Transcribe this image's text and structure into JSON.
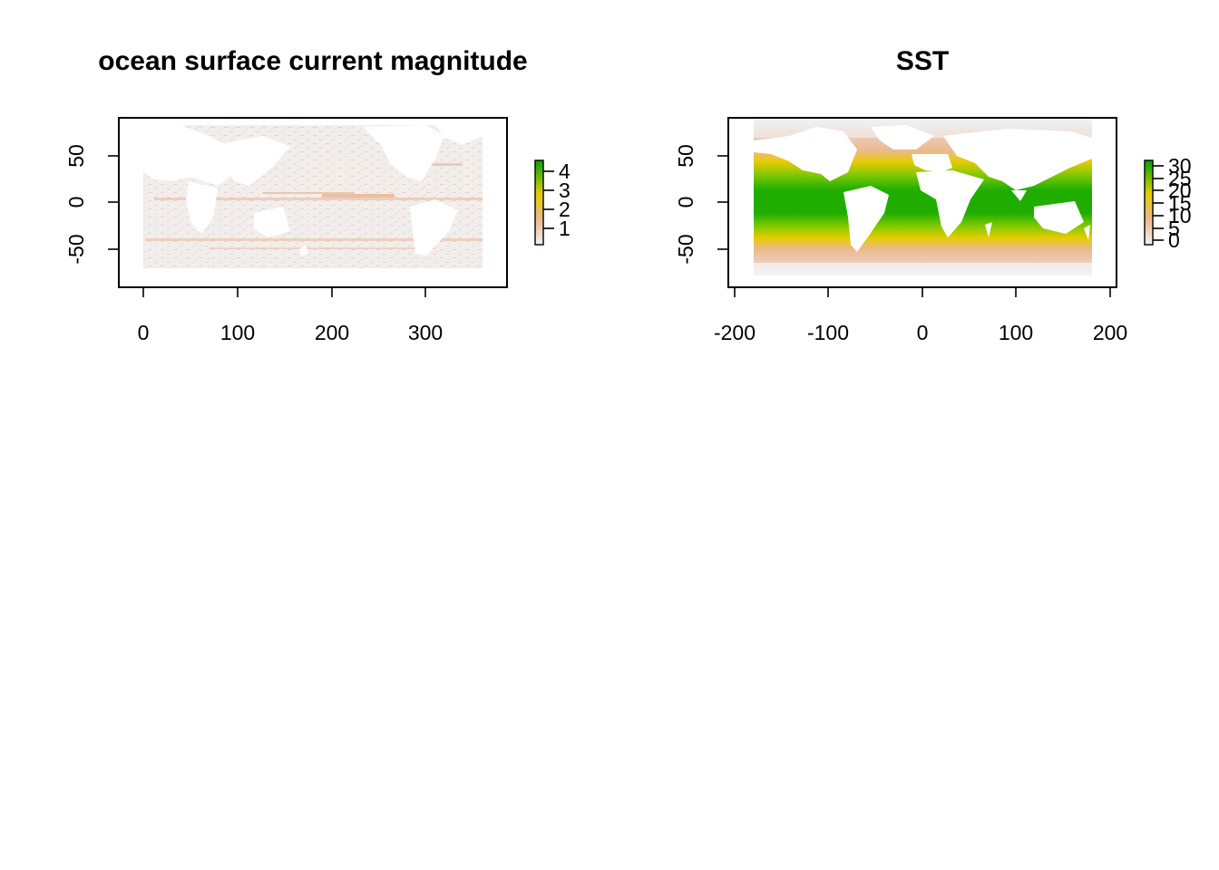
{
  "panels": [
    {
      "title": "ocean surface current magnitude",
      "x_ticks": [
        "0",
        "100",
        "200",
        "300"
      ],
      "y_ticks": [
        "-50",
        "0",
        "50"
      ],
      "legend_ticks": [
        "1",
        "2",
        "3",
        "4"
      ],
      "legend_range": [
        0.3,
        4.5
      ],
      "x_range": [
        0,
        360
      ],
      "colors": {
        "low": "#f2f2f2",
        "mid_low": "#ebb98e",
        "mid": "#e6cc00",
        "high": "#00a600"
      }
    },
    {
      "title": "SST",
      "x_ticks": [
        "-200",
        "-100",
        "0",
        "100",
        "200"
      ],
      "y_ticks": [
        "-50",
        "0",
        "50"
      ],
      "legend_ticks": [
        "0",
        "5",
        "10",
        "15",
        "20",
        "25",
        "30"
      ],
      "legend_range": [
        -2,
        32
      ],
      "x_range": [
        -180,
        180
      ],
      "colors": {
        "low": "#f2f2f2",
        "mid_low": "#ebb98e",
        "mid": "#e6cc00",
        "high": "#00a600"
      }
    }
  ]
}
